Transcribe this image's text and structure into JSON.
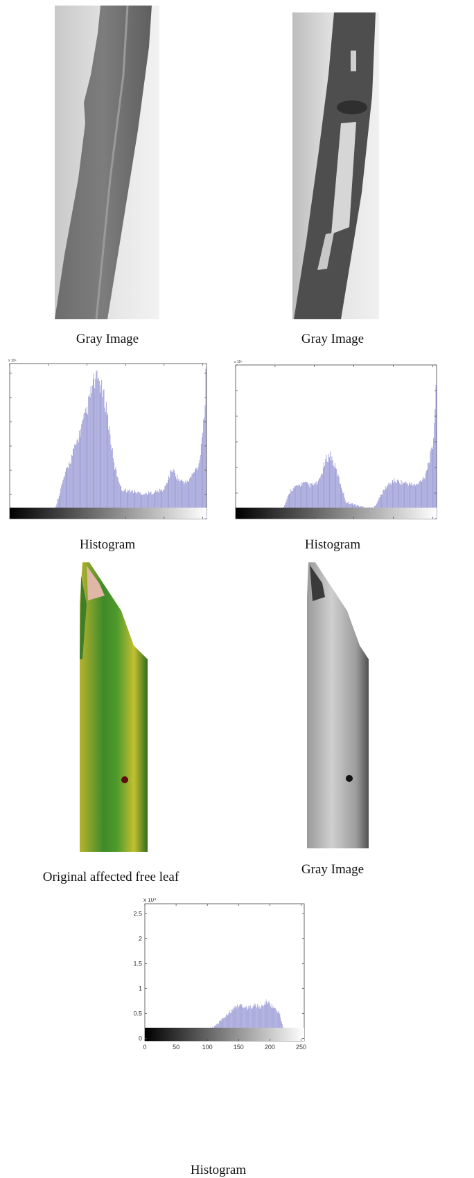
{
  "captions": {
    "gray_image_1": "Gray Image",
    "gray_image_2": "Gray Image",
    "histogram_1": "Histogram",
    "histogram_2": "Histogram",
    "original_leaf": "Original affected free leaf",
    "gray_image_3": "Gray Image",
    "histogram_3": "Histogram"
  },
  "chart_data": [
    {
      "type": "bar",
      "y_exponent_label": "x 10⁴",
      "xlim": [
        0,
        255
      ],
      "ylim": [
        0,
        3.2
      ],
      "x_ticks": [
        0,
        50,
        100,
        150,
        200,
        250
      ],
      "y_ticks": [
        0,
        0.5,
        1,
        1.5,
        2,
        2.5,
        3
      ],
      "values_profile": [
        [
          0,
          0
        ],
        [
          55,
          0
        ],
        [
          60,
          0.3
        ],
        [
          70,
          0.9
        ],
        [
          85,
          1.6
        ],
        [
          100,
          2.4
        ],
        [
          108,
          3.0
        ],
        [
          115,
          3.1
        ],
        [
          125,
          2.5
        ],
        [
          135,
          1.2
        ],
        [
          145,
          0.65
        ],
        [
          160,
          0.6
        ],
        [
          175,
          0.55
        ],
        [
          190,
          0.6
        ],
        [
          200,
          0.65
        ],
        [
          210,
          1.1
        ],
        [
          220,
          0.85
        ],
        [
          230,
          0.8
        ],
        [
          245,
          1.2
        ],
        [
          252,
          2.3
        ],
        [
          254,
          3.1
        ],
        [
          255,
          0.1
        ]
      ],
      "colorbar": "gray gradient"
    },
    {
      "type": "bar",
      "y_exponent_label": "x 10⁴",
      "xlim": [
        0,
        255
      ],
      "ylim": [
        0,
        6
      ],
      "x_ticks": [
        0,
        50,
        100,
        150,
        200,
        250
      ],
      "y_ticks": [
        0,
        1,
        2,
        3,
        4,
        5,
        6
      ],
      "values_profile": [
        [
          0,
          0
        ],
        [
          50,
          0
        ],
        [
          60,
          0.4
        ],
        [
          70,
          1.2
        ],
        [
          85,
          1.5
        ],
        [
          95,
          1.4
        ],
        [
          105,
          1.5
        ],
        [
          115,
          2.5
        ],
        [
          120,
          2.7
        ],
        [
          128,
          2.0
        ],
        [
          140,
          0.7
        ],
        [
          160,
          0.5
        ],
        [
          175,
          0.45
        ],
        [
          190,
          1.3
        ],
        [
          200,
          1.6
        ],
        [
          215,
          1.5
        ],
        [
          230,
          1.4
        ],
        [
          240,
          1.8
        ],
        [
          250,
          3.0
        ],
        [
          255,
          5.8
        ]
      ],
      "colorbar": "gray gradient"
    },
    {
      "type": "bar",
      "y_exponent_label": "x 10⁴",
      "xlim": [
        0,
        255
      ],
      "ylim": [
        -0.05,
        2.7
      ],
      "x_ticks": [
        0,
        50,
        100,
        150,
        200,
        250
      ],
      "x_tick_labels": [
        "0",
        "50",
        "100",
        "150",
        "200",
        "250"
      ],
      "y_ticks": [
        0,
        0.5,
        1,
        1.5,
        2,
        2.5
      ],
      "y_tick_labels": [
        "0",
        "0.5",
        "1",
        "1.5",
        "2",
        "2.5"
      ],
      "values_profile": [
        [
          0,
          0
        ],
        [
          20,
          0
        ],
        [
          25,
          0.07
        ],
        [
          40,
          0.06
        ],
        [
          60,
          0.06
        ],
        [
          80,
          0.07
        ],
        [
          100,
          0.15
        ],
        [
          115,
          0.3
        ],
        [
          130,
          0.5
        ],
        [
          145,
          0.68
        ],
        [
          155,
          0.72
        ],
        [
          165,
          0.65
        ],
        [
          175,
          0.72
        ],
        [
          185,
          0.66
        ],
        [
          195,
          0.8
        ],
        [
          205,
          0.68
        ],
        [
          215,
          0.55
        ],
        [
          222,
          0.2
        ],
        [
          230,
          0.05
        ],
        [
          245,
          0.03
        ],
        [
          250,
          0.09
        ],
        [
          255,
          0.02
        ]
      ],
      "colorbar": "gray gradient"
    }
  ]
}
